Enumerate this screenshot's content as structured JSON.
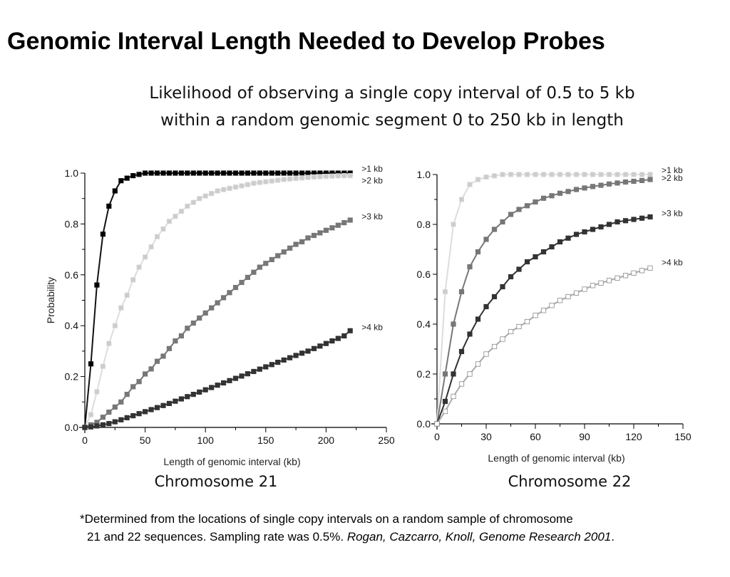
{
  "page": {
    "title": "Genomic Interval Length Needed to Develop Probes",
    "subtitle_line1": "Likelihood of observing a single copy interval of 0.5 to 5 kb",
    "subtitle_line2": "within a random genomic segment 0 to 250 kb in length",
    "footnote_line1": "*Determined from the locations of single copy intervals on a random sample of chromosome",
    "footnote_line2": "21 and 22 sequences. Sampling rate was 0.5%.",
    "footnote_citation": "Rogan, Cazcarro, Knoll, Genome Research 2001",
    "footnote_end": "."
  },
  "chart_data": [
    {
      "type": "line",
      "caption": "Chromosome 21",
      "xlabel": "Length of genomic interval (kb)",
      "ylabel": "Probability",
      "xlim": [
        0,
        250
      ],
      "ylim": [
        0,
        1
      ],
      "xticks": [
        0,
        50,
        100,
        150,
        200,
        250
      ],
      "yticks": [
        0.0,
        0.2,
        0.4,
        0.6,
        0.8,
        1.0
      ],
      "series": [
        {
          "name": ">1 kb",
          "color": "#111111",
          "marker_fill": "#000000",
          "x": [
            0,
            5,
            10,
            15,
            20,
            25,
            30,
            35,
            40,
            45,
            50,
            55,
            60,
            65,
            70,
            75,
            80,
            85,
            90,
            95,
            100,
            105,
            110,
            115,
            120,
            125,
            130,
            135,
            140,
            145,
            150,
            155,
            160,
            165,
            170,
            175,
            180,
            185,
            190,
            195,
            200,
            205,
            210,
            215,
            220
          ],
          "y": [
            0,
            0.25,
            0.56,
            0.76,
            0.87,
            0.93,
            0.97,
            0.98,
            0.99,
            0.995,
            1,
            1,
            1,
            1,
            1,
            1,
            1,
            1,
            1,
            1,
            1,
            1,
            1,
            1,
            1,
            1,
            1,
            1,
            1,
            1,
            1,
            1,
            1,
            1,
            1,
            1,
            1,
            1,
            1,
            1,
            1,
            1,
            1,
            1,
            1
          ]
        },
        {
          "name": ">2 kb",
          "color": "#dddddd",
          "marker_fill": "#cccccc",
          "x": [
            0,
            5,
            10,
            15,
            20,
            25,
            30,
            35,
            40,
            45,
            50,
            55,
            60,
            65,
            70,
            75,
            80,
            85,
            90,
            95,
            100,
            105,
            110,
            115,
            120,
            125,
            130,
            135,
            140,
            145,
            150,
            155,
            160,
            165,
            170,
            175,
            180,
            185,
            190,
            195,
            200,
            205,
            210,
            215,
            220
          ],
          "y": [
            0,
            0.05,
            0.14,
            0.24,
            0.33,
            0.4,
            0.47,
            0.52,
            0.58,
            0.63,
            0.67,
            0.71,
            0.75,
            0.78,
            0.81,
            0.83,
            0.85,
            0.87,
            0.885,
            0.9,
            0.91,
            0.92,
            0.93,
            0.935,
            0.94,
            0.945,
            0.95,
            0.955,
            0.96,
            0.963,
            0.966,
            0.969,
            0.972,
            0.975,
            0.977,
            0.979,
            0.981,
            0.983,
            0.985,
            0.986,
            0.987,
            0.988,
            0.989,
            0.99,
            0.99
          ]
        },
        {
          "name": ">3 kb",
          "color": "#777777",
          "marker_fill": "#777777",
          "x": [
            0,
            5,
            10,
            15,
            20,
            25,
            30,
            35,
            40,
            45,
            50,
            55,
            60,
            65,
            70,
            75,
            80,
            85,
            90,
            95,
            100,
            105,
            110,
            115,
            120,
            125,
            130,
            135,
            140,
            145,
            150,
            155,
            160,
            165,
            170,
            175,
            180,
            185,
            190,
            195,
            200,
            205,
            210,
            215,
            220
          ],
          "y": [
            0,
            0.01,
            0.02,
            0.04,
            0.06,
            0.08,
            0.1,
            0.13,
            0.16,
            0.18,
            0.21,
            0.23,
            0.26,
            0.28,
            0.31,
            0.34,
            0.36,
            0.39,
            0.41,
            0.43,
            0.45,
            0.47,
            0.49,
            0.51,
            0.53,
            0.55,
            0.57,
            0.59,
            0.61,
            0.63,
            0.645,
            0.66,
            0.675,
            0.69,
            0.705,
            0.72,
            0.73,
            0.745,
            0.755,
            0.765,
            0.775,
            0.785,
            0.795,
            0.805,
            0.815
          ]
        },
        {
          "name": ">4 kb",
          "color": "#333333",
          "marker_fill": "#333333",
          "x": [
            0,
            5,
            10,
            15,
            20,
            25,
            30,
            35,
            40,
            45,
            50,
            55,
            60,
            65,
            70,
            75,
            80,
            85,
            90,
            95,
            100,
            105,
            110,
            115,
            120,
            125,
            130,
            135,
            140,
            145,
            150,
            155,
            160,
            165,
            170,
            175,
            180,
            185,
            190,
            195,
            200,
            205,
            210,
            215,
            220
          ],
          "y": [
            0,
            0.002,
            0.006,
            0.01,
            0.015,
            0.022,
            0.03,
            0.038,
            0.046,
            0.054,
            0.062,
            0.07,
            0.078,
            0.086,
            0.094,
            0.103,
            0.112,
            0.121,
            0.13,
            0.139,
            0.148,
            0.157,
            0.166,
            0.175,
            0.184,
            0.193,
            0.202,
            0.211,
            0.22,
            0.229,
            0.238,
            0.247,
            0.256,
            0.265,
            0.274,
            0.283,
            0.292,
            0.3,
            0.31,
            0.32,
            0.33,
            0.34,
            0.35,
            0.36,
            0.38
          ]
        }
      ]
    },
    {
      "type": "line",
      "caption": "Chromosome 22",
      "xlabel": "Length of genomic interval (kb)",
      "ylabel": "",
      "xlim": [
        0,
        150
      ],
      "ylim": [
        0,
        1
      ],
      "xticks": [
        0,
        30,
        60,
        90,
        120,
        150
      ],
      "yticks": [
        0.0,
        0.2,
        0.4,
        0.6,
        0.8,
        1.0
      ],
      "series": [
        {
          "name": ">1 kb",
          "color": "#dddddd",
          "marker_fill": "#cccccc",
          "x": [
            0,
            5,
            10,
            15,
            20,
            25,
            30,
            35,
            40,
            45,
            50,
            55,
            60,
            65,
            70,
            75,
            80,
            85,
            90,
            95,
            100,
            105,
            110,
            115,
            120,
            125,
            130
          ],
          "y": [
            0,
            0.53,
            0.8,
            0.9,
            0.96,
            0.98,
            0.99,
            0.995,
            1,
            1,
            1,
            1,
            1,
            1,
            1,
            1,
            1,
            1,
            1,
            1,
            1,
            1,
            1,
            1,
            1,
            1,
            1
          ]
        },
        {
          "name": ">2 kb",
          "color": "#777777",
          "marker_fill": "#777777",
          "x": [
            0,
            5,
            10,
            15,
            20,
            25,
            30,
            35,
            40,
            45,
            50,
            55,
            60,
            65,
            70,
            75,
            80,
            85,
            90,
            95,
            100,
            105,
            110,
            115,
            120,
            125,
            130
          ],
          "y": [
            0,
            0.2,
            0.4,
            0.53,
            0.63,
            0.69,
            0.74,
            0.78,
            0.81,
            0.84,
            0.86,
            0.875,
            0.89,
            0.905,
            0.915,
            0.925,
            0.932,
            0.94,
            0.946,
            0.952,
            0.957,
            0.962,
            0.966,
            0.97,
            0.973,
            0.976,
            0.98
          ]
        },
        {
          "name": ">3 kb",
          "color": "#333333",
          "marker_fill": "#333333",
          "x": [
            0,
            5,
            10,
            15,
            20,
            25,
            30,
            35,
            40,
            45,
            50,
            55,
            60,
            65,
            70,
            75,
            80,
            85,
            90,
            95,
            100,
            105,
            110,
            115,
            120,
            125,
            130
          ],
          "y": [
            0,
            0.09,
            0.2,
            0.29,
            0.36,
            0.42,
            0.47,
            0.51,
            0.55,
            0.59,
            0.62,
            0.65,
            0.67,
            0.69,
            0.71,
            0.73,
            0.745,
            0.76,
            0.77,
            0.78,
            0.79,
            0.8,
            0.81,
            0.815,
            0.82,
            0.825,
            0.83
          ]
        },
        {
          "name": ">4 kb",
          "color": "#aaaaaa",
          "marker_fill": "#ffffff",
          "x": [
            0,
            5,
            10,
            15,
            20,
            25,
            30,
            35,
            40,
            45,
            50,
            55,
            60,
            65,
            70,
            75,
            80,
            85,
            90,
            95,
            100,
            105,
            110,
            115,
            120,
            125,
            130
          ],
          "y": [
            0,
            0.05,
            0.11,
            0.16,
            0.2,
            0.24,
            0.28,
            0.31,
            0.34,
            0.37,
            0.39,
            0.41,
            0.435,
            0.455,
            0.475,
            0.495,
            0.51,
            0.525,
            0.54,
            0.555,
            0.565,
            0.575,
            0.585,
            0.595,
            0.605,
            0.615,
            0.625
          ]
        }
      ]
    }
  ]
}
